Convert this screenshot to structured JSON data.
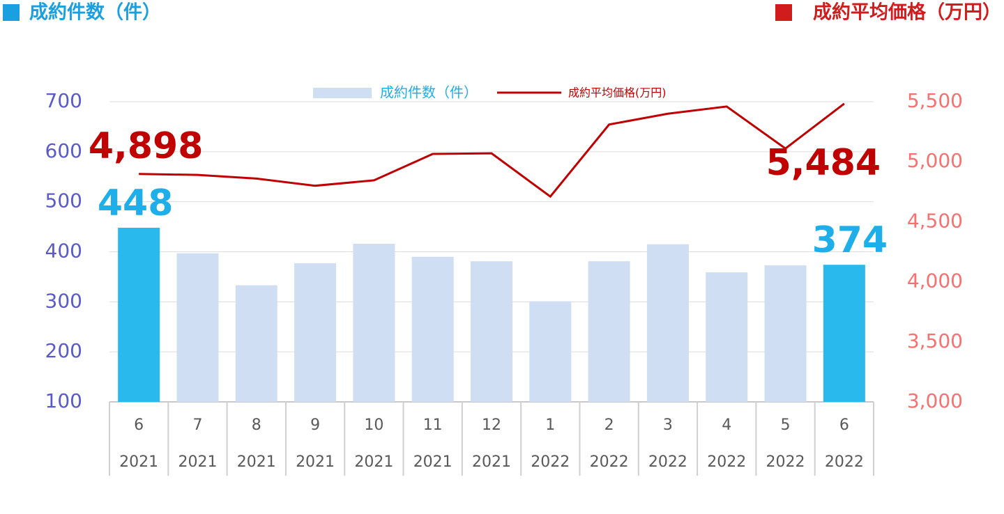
{
  "chart_data": {
    "type": "bar_line",
    "y_label": "成約件数（件）",
    "y2_label": "成約平均価格（万円）",
    "categories": [
      [
        "6",
        "2021"
      ],
      [
        "7",
        "2021"
      ],
      [
        "8",
        "2021"
      ],
      [
        "9",
        "2021"
      ],
      [
        "10",
        "2021"
      ],
      [
        "11",
        "2021"
      ],
      [
        "12",
        "2021"
      ],
      [
        "1",
        "2022"
      ],
      [
        "2",
        "2022"
      ],
      [
        "3",
        "2022"
      ],
      [
        "4",
        "2022"
      ],
      [
        "5",
        "2022"
      ],
      [
        "6",
        "2022"
      ]
    ],
    "series": [
      {
        "name": "成約件数（件）",
        "type": "bar",
        "color": "#cfdef3",
        "colors": [
          "#29b9ec",
          "#cfdef3",
          "#cfdef3",
          "#cfdef3",
          "#cfdef3",
          "#cfdef3",
          "#cfdef3",
          "#cfdef3",
          "#cfdef3",
          "#cfdef3",
          "#cfdef3",
          "#cfdef3",
          "#29b9ec"
        ],
        "values": [
          448,
          397,
          333,
          377,
          416,
          390,
          381,
          301,
          381,
          415,
          359,
          373,
          374
        ],
        "value_labels": [
          "448",
          null,
          null,
          null,
          null,
          null,
          null,
          null,
          null,
          null,
          null,
          null,
          "374"
        ]
      },
      {
        "name": "成約平均価格(万円)",
        "type": "line",
        "axis": "y2",
        "color": "#c00000",
        "values": [
          4898,
          4890,
          4860,
          4800,
          4845,
          5065,
          5070,
          4710,
          5310,
          5400,
          5460,
          5110,
          5484
        ],
        "value_labels": [
          "4,898",
          null,
          null,
          null,
          null,
          null,
          null,
          null,
          null,
          null,
          null,
          null,
          "5,484"
        ]
      }
    ],
    "ylim": [
      100,
      700
    ],
    "yticks": [
      100,
      200,
      300,
      400,
      500,
      600,
      700
    ],
    "y2lim": [
      3000,
      5500
    ],
    "y2ticks": [
      {
        "value": 3000,
        "label": "3,000"
      },
      {
        "value": 3500,
        "label": "3,500"
      },
      {
        "value": 4000,
        "label": "4,000"
      },
      {
        "value": 4500,
        "label": "4,500"
      },
      {
        "value": 5000,
        "label": "5,000"
      },
      {
        "value": 5500,
        "label": "5,500"
      }
    ],
    "grid": true,
    "legend": "top"
  }
}
